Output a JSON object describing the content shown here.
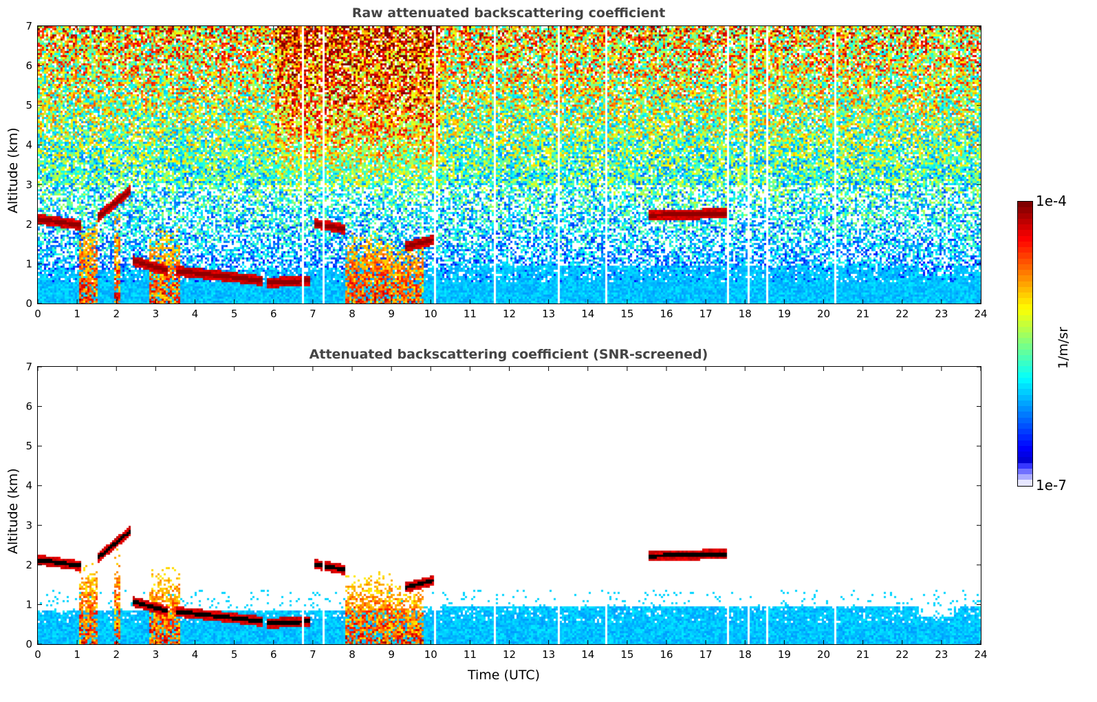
{
  "chart_data": [
    {
      "type": "heatmap",
      "title": "Raw attenuated backscattering coefficient",
      "xlabel": "",
      "ylabel": "Altitude (km)",
      "xlim": [
        0,
        24
      ],
      "ylim": [
        0,
        7
      ],
      "xticks": [
        "0",
        "1",
        "2",
        "3",
        "4",
        "5",
        "6",
        "7",
        "8",
        "9",
        "10",
        "11",
        "12",
        "13",
        "14",
        "15",
        "16",
        "17",
        "18",
        "19",
        "20",
        "21",
        "22",
        "23",
        "24"
      ],
      "yticks": [
        "0",
        "1",
        "2",
        "3",
        "4",
        "5",
        "6",
        "7"
      ],
      "screened": false
    },
    {
      "type": "heatmap",
      "title": "Attenuated backscattering coefficient (SNR-screened)",
      "xlabel": "Time (UTC)",
      "ylabel": "Altitude (km)",
      "xlim": [
        0,
        24
      ],
      "ylim": [
        0,
        7
      ],
      "xticks": [
        "0",
        "1",
        "2",
        "3",
        "4",
        "5",
        "6",
        "7",
        "8",
        "9",
        "10",
        "11",
        "12",
        "13",
        "14",
        "15",
        "16",
        "17",
        "18",
        "19",
        "20",
        "21",
        "22",
        "23",
        "24"
      ],
      "yticks": [
        "0",
        "1",
        "2",
        "3",
        "4",
        "5",
        "6",
        "7"
      ],
      "screened": true
    }
  ],
  "features": {
    "cloud_layers": [
      {
        "start_h": 0.0,
        "end_h": 1.1,
        "alt_start_km": 2.15,
        "alt_end_km": 2.0
      },
      {
        "start_h": 1.5,
        "end_h": 2.35,
        "alt_start_km": 2.2,
        "alt_end_km": 2.9
      },
      {
        "start_h": 2.4,
        "end_h": 3.3,
        "alt_start_km": 1.1,
        "alt_end_km": 0.85
      },
      {
        "start_h": 3.5,
        "end_h": 5.7,
        "alt_start_km": 0.85,
        "alt_end_km": 0.6
      },
      {
        "start_h": 5.8,
        "end_h": 6.9,
        "alt_start_km": 0.55,
        "alt_end_km": 0.6
      },
      {
        "start_h": 7.0,
        "end_h": 7.8,
        "alt_start_km": 2.05,
        "alt_end_km": 1.9
      },
      {
        "start_h": 9.3,
        "end_h": 10.1,
        "alt_start_km": 1.45,
        "alt_end_km": 1.65
      },
      {
        "start_h": 15.5,
        "end_h": 17.5,
        "alt_start_km": 2.25,
        "alt_end_km": 2.3
      }
    ],
    "fall_streaks": [
      {
        "start_h": 1.0,
        "end_h": 1.5,
        "top_km": 2.2
      },
      {
        "start_h": 1.9,
        "end_h": 2.1,
        "top_km": 2.5
      },
      {
        "start_h": 2.8,
        "end_h": 3.6,
        "top_km": 2.0
      },
      {
        "start_h": 7.8,
        "end_h": 9.0,
        "top_km": 1.9
      },
      {
        "start_h": 9.0,
        "end_h": 9.8,
        "top_km": 1.6
      }
    ],
    "data_gaps_h": [
      6.7,
      7.25,
      10.1,
      11.6,
      13.25,
      14.45,
      17.55,
      18.05,
      18.55,
      20.25
    ]
  },
  "colorbar": {
    "label": "1/m/sr",
    "max_label": "1e-4",
    "min_label": "1e-7",
    "scale": "log",
    "range": [
      1e-07,
      0.0001
    ],
    "colormap": "jet"
  }
}
